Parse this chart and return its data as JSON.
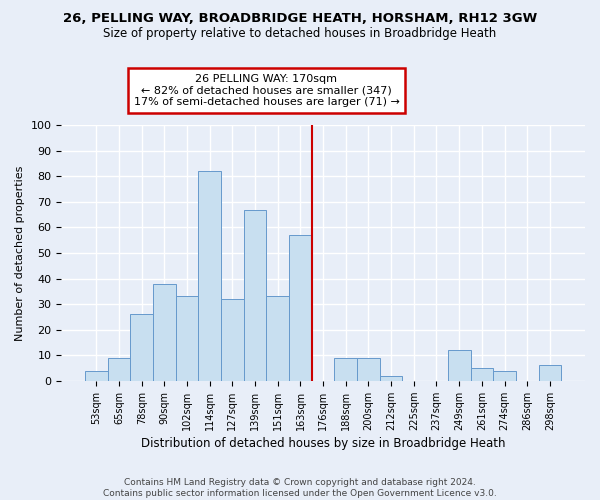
{
  "title_line1": "26, PELLING WAY, BROADBRIDGE HEATH, HORSHAM, RH12 3GW",
  "title_line2": "Size of property relative to detached houses in Broadbridge Heath",
  "xlabel": "Distribution of detached houses by size in Broadbridge Heath",
  "ylabel": "Number of detached properties",
  "bar_labels": [
    "53sqm",
    "65sqm",
    "78sqm",
    "90sqm",
    "102sqm",
    "114sqm",
    "127sqm",
    "139sqm",
    "151sqm",
    "163sqm",
    "176sqm",
    "188sqm",
    "200sqm",
    "212sqm",
    "225sqm",
    "237sqm",
    "249sqm",
    "261sqm",
    "274sqm",
    "286sqm",
    "298sqm"
  ],
  "bar_values": [
    4,
    9,
    26,
    38,
    33,
    82,
    32,
    67,
    33,
    57,
    0,
    9,
    9,
    2,
    0,
    0,
    12,
    5,
    4,
    0,
    6
  ],
  "bar_color": "#c8dff0",
  "bar_edge_color": "#6699cc",
  "property_line_idx": 9,
  "property_line_color": "#cc0000",
  "annotation_title": "26 PELLING WAY: 170sqm",
  "annotation_line1": "← 82% of detached houses are smaller (347)",
  "annotation_line2": "17% of semi-detached houses are larger (71) →",
  "annotation_box_color": "#ffffff",
  "annotation_box_edge": "#cc0000",
  "ylim": [
    0,
    100
  ],
  "yticks": [
    0,
    10,
    20,
    30,
    40,
    50,
    60,
    70,
    80,
    90,
    100
  ],
  "footer_line1": "Contains HM Land Registry data © Crown copyright and database right 2024.",
  "footer_line2": "Contains public sector information licensed under the Open Government Licence v3.0.",
  "bg_color": "#e8eef8"
}
